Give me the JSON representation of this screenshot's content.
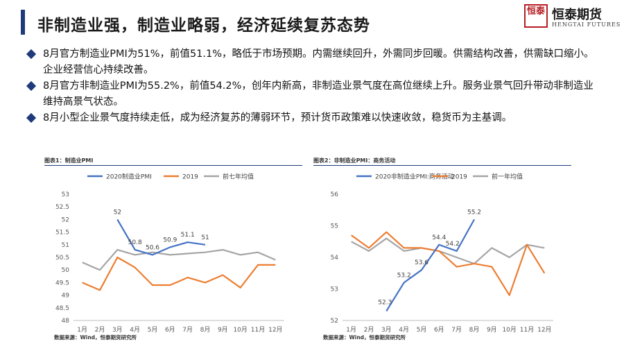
{
  "header": {
    "title": "非制造业强，制造业略弱，经济延续复苏态势",
    "logo_seal": "恒泰",
    "logo_cn": "恒泰期货",
    "logo_en": "HENGTAI FUTURES",
    "logo_icon": "hengtai-seal-logo"
  },
  "bullets": [
    "8月官方制造业PMI为51%，前值51.1%，略低于市场预期。内需继续回升，外需同步回暖。供需结构改善，供需缺口缩小。企业经营信心持续改善。",
    "8月官方非制造业PMI为55.2%，前值54.2%，创年内新高，非制造业景气度在高位继续上升。服务业景气回升带动非制造业维持高景气状态。",
    "8月小型企业景气度持续走低，成为经济复苏的薄弱环节，预计货币政策难以快速收敛，稳货币为主基调。"
  ],
  "colors": {
    "accent": "#1f3a7a",
    "series_2020": "#4472c4",
    "series_2019": "#ed7d31",
    "series_avg": "#a5a5a5"
  },
  "chart_data": [
    {
      "type": "line",
      "caption": "图表1：制造业PMI",
      "source": "数据来源：Wind，恒泰期货研究所",
      "categories": [
        "1月",
        "2月",
        "3月",
        "4月",
        "5月",
        "6月",
        "7月",
        "8月",
        "9月",
        "10月",
        "11月",
        "12月"
      ],
      "ylim": [
        48,
        53
      ],
      "yticks": [
        "48",
        "48.5",
        "49",
        "49.5",
        "50",
        "50.5",
        "51",
        "51.5",
        "52",
        "52.5",
        "53"
      ],
      "legend_position": "top",
      "grid": false,
      "series": [
        {
          "name": "2020制造业PMI",
          "color": "#4472c4",
          "values": [
            null,
            null,
            52.0,
            50.8,
            50.6,
            50.9,
            51.1,
            51.0,
            null,
            null,
            null,
            null
          ],
          "labels": [
            null,
            null,
            "52",
            "50.8",
            "50.6",
            "50.9",
            "51.1",
            "51",
            null,
            null,
            null,
            null
          ]
        },
        {
          "name": "2019",
          "color": "#ed7d31",
          "values": [
            49.5,
            49.2,
            50.5,
            50.1,
            49.4,
            49.4,
            49.7,
            49.5,
            49.8,
            49.3,
            50.2,
            50.2
          ]
        },
        {
          "name": "前七年均值",
          "color": "#a5a5a5",
          "values": [
            50.3,
            50.0,
            50.8,
            50.6,
            50.7,
            50.6,
            50.65,
            50.7,
            50.8,
            50.6,
            50.7,
            50.4
          ]
        }
      ]
    },
    {
      "type": "line",
      "caption": "图表2：非制造业PMI：商务活动",
      "source": "数据来源：Wind，恒泰期货研究所",
      "categories": [
        "1月",
        "2月",
        "3月",
        "4月",
        "5月",
        "6月",
        "7月",
        "8月",
        "9月",
        "10月",
        "11月",
        "12月"
      ],
      "ylim": [
        52,
        56
      ],
      "yticks": [
        "52",
        "53",
        "54",
        "55",
        "56"
      ],
      "legend_position": "top",
      "grid": false,
      "series": [
        {
          "name": "2020非制造业PMI:商务活动",
          "color": "#4472c4",
          "values": [
            null,
            null,
            52.3,
            53.2,
            53.6,
            54.4,
            54.2,
            55.2,
            null,
            null,
            null,
            null
          ],
          "labels": [
            null,
            null,
            "52.3",
            "53.2",
            "53.6",
            "54.4",
            "54.2",
            "55.2",
            null,
            null,
            null,
            null
          ]
        },
        {
          "name": "2019",
          "color": "#ed7d31",
          "values": [
            54.7,
            54.3,
            54.8,
            54.3,
            54.3,
            54.2,
            53.7,
            53.8,
            53.7,
            52.8,
            54.4,
            53.5
          ]
        },
        {
          "name": "前一年均值",
          "color": "#a5a5a5",
          "values": [
            54.5,
            54.2,
            54.6,
            54.2,
            54.3,
            54.2,
            54.0,
            53.8,
            54.3,
            54.0,
            54.4,
            54.3
          ]
        }
      ]
    }
  ]
}
